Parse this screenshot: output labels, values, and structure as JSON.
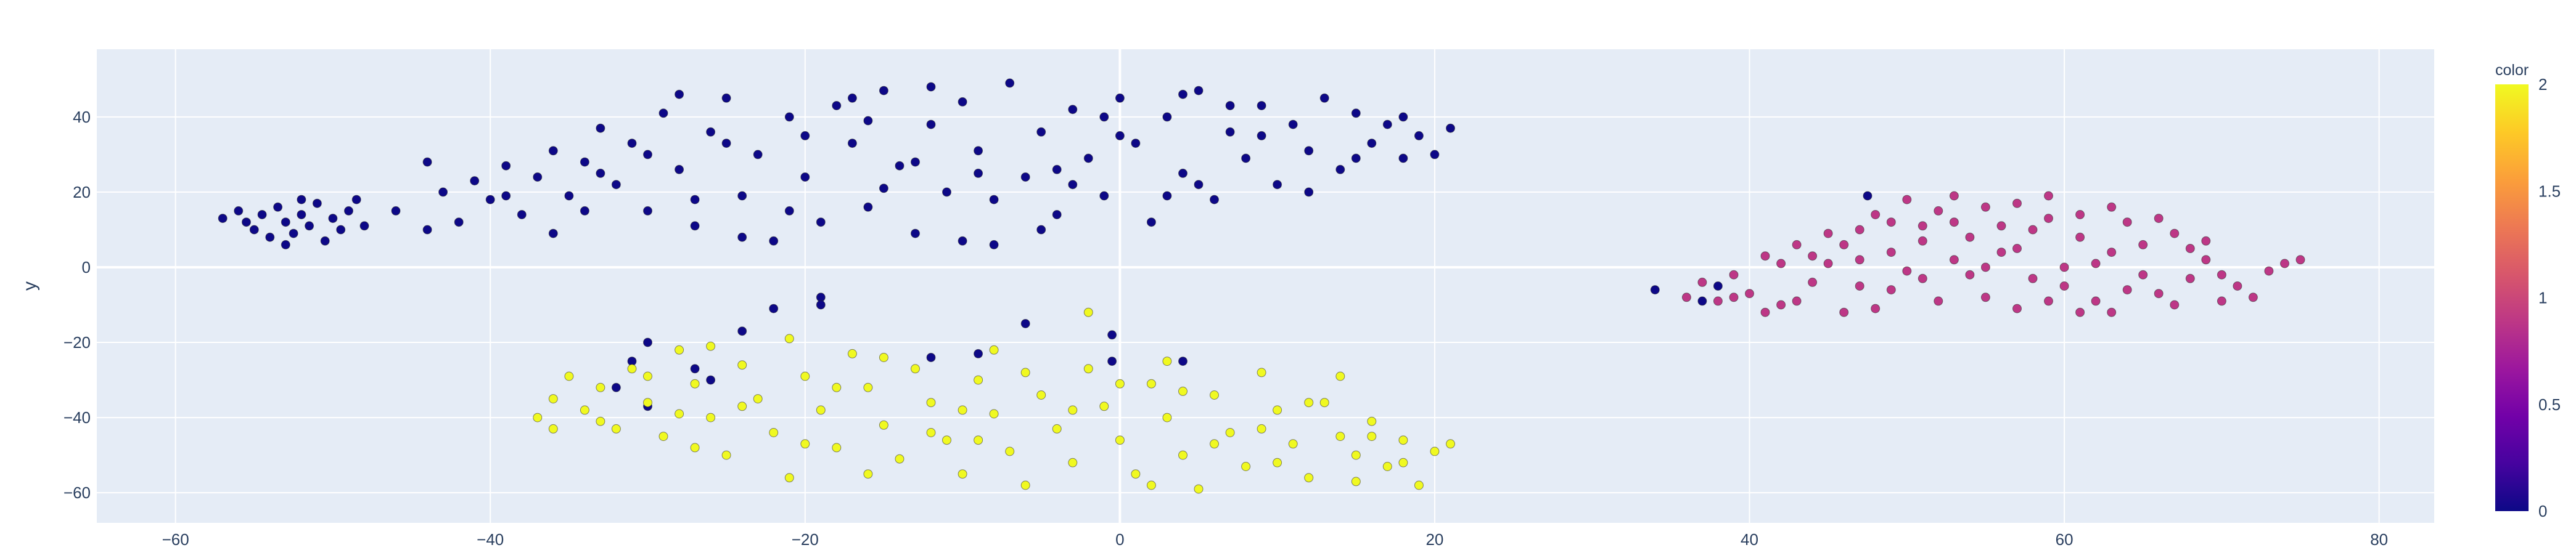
{
  "chart_data": {
    "type": "scatter",
    "xlabel": "",
    "ylabel": "y",
    "xlim": [
      -65,
      83.5
    ],
    "ylim": [
      -68,
      58
    ],
    "x_ticks": [
      -60,
      -40,
      -20,
      0,
      20,
      40,
      60,
      80
    ],
    "y_ticks": [
      -60,
      -40,
      -20,
      0,
      20,
      40
    ],
    "x_tick_labels": [
      "−60",
      "−40",
      "−20",
      "0",
      "20",
      "40",
      "60",
      "80"
    ],
    "y_tick_labels": [
      "−60",
      "−40",
      "−20",
      "0",
      "20",
      "40"
    ],
    "grid": true,
    "colorbar": {
      "title": "color",
      "range": [
        0,
        2
      ],
      "ticks": [
        0,
        0.5,
        1,
        1.5,
        2
      ],
      "tick_labels": [
        "0",
        "0.5",
        "1",
        "1.5",
        "2"
      ],
      "colorscale": [
        "#0d0887",
        "#46039f",
        "#7201a8",
        "#9c179e",
        "#bd3786",
        "#d8576b",
        "#ed7953",
        "#fb9f3a",
        "#fdca26",
        "#f0f921"
      ]
    },
    "series": [
      {
        "color_value": 0,
        "marker_color": "#0d0887",
        "points": [
          [
            -57,
            13
          ],
          [
            -56,
            15
          ],
          [
            -55.5,
            12
          ],
          [
            -55,
            10
          ],
          [
            -54.5,
            14
          ],
          [
            -54,
            8
          ],
          [
            -53.5,
            16
          ],
          [
            -53,
            12
          ],
          [
            -52.5,
            9
          ],
          [
            -52,
            14
          ],
          [
            -51.5,
            11
          ],
          [
            -51,
            17
          ],
          [
            -50.5,
            7
          ],
          [
            -50,
            13
          ],
          [
            -49.5,
            10
          ],
          [
            -49,
            15
          ],
          [
            -48,
            11
          ],
          [
            -48.5,
            18
          ],
          [
            -52,
            18
          ],
          [
            -53,
            6
          ],
          [
            -46,
            15
          ],
          [
            -44,
            10
          ],
          [
            -43,
            20
          ],
          [
            -42,
            12
          ],
          [
            -41,
            23
          ],
          [
            -40,
            18
          ],
          [
            -39,
            27
          ],
          [
            -38,
            14
          ],
          [
            -37,
            24
          ],
          [
            -36,
            31
          ],
          [
            -35,
            19
          ],
          [
            -34,
            28
          ],
          [
            -33,
            37
          ],
          [
            -32,
            22
          ],
          [
            -31,
            33
          ],
          [
            -30,
            15
          ],
          [
            -29,
            41
          ],
          [
            -28,
            26
          ],
          [
            -27,
            11
          ],
          [
            -26,
            36
          ],
          [
            -25,
            45
          ],
          [
            -24,
            19
          ],
          [
            -23,
            30
          ],
          [
            -22,
            7
          ],
          [
            -21,
            40
          ],
          [
            -20,
            24
          ],
          [
            -19,
            12
          ],
          [
            -18,
            43
          ],
          [
            -17,
            33
          ],
          [
            -16,
            16
          ],
          [
            -15,
            47
          ],
          [
            -14,
            27
          ],
          [
            -13,
            9
          ],
          [
            -12,
            38
          ],
          [
            -11,
            20
          ],
          [
            -10,
            44
          ],
          [
            -9,
            31
          ],
          [
            -8,
            6
          ],
          [
            -7,
            49
          ],
          [
            -6,
            24
          ],
          [
            -5,
            36
          ],
          [
            -4,
            14
          ],
          [
            -3,
            42
          ],
          [
            -2,
            29
          ],
          [
            -1,
            19
          ],
          [
            0,
            45
          ],
          [
            1,
            33
          ],
          [
            2,
            12
          ],
          [
            3,
            40
          ],
          [
            4,
            25
          ],
          [
            5,
            47
          ],
          [
            6,
            18
          ],
          [
            7,
            36
          ],
          [
            8,
            29
          ],
          [
            9,
            43
          ],
          [
            10,
            22
          ],
          [
            11,
            38
          ],
          [
            12,
            31
          ],
          [
            13,
            45
          ],
          [
            14,
            26
          ],
          [
            15,
            41
          ],
          [
            16,
            33
          ],
          [
            17,
            38
          ],
          [
            18,
            29
          ],
          [
            19,
            35
          ],
          [
            20,
            30
          ],
          [
            21,
            37
          ],
          [
            -44,
            28
          ],
          [
            -36,
            9
          ],
          [
            -28,
            46
          ],
          [
            -20,
            35
          ],
          [
            -12,
            48
          ],
          [
            -4,
            26
          ],
          [
            4,
            46
          ],
          [
            12,
            20
          ],
          [
            -30,
            30
          ],
          [
            -24,
            8
          ],
          [
            -16,
            39
          ],
          [
            -8,
            18
          ],
          [
            0,
            35
          ],
          [
            -33,
            25
          ],
          [
            -27,
            18
          ],
          [
            -21,
            15
          ],
          [
            -15,
            21
          ],
          [
            -9,
            25
          ],
          [
            -3,
            22
          ],
          [
            3,
            19
          ],
          [
            9,
            35
          ],
          [
            15,
            29
          ],
          [
            -39,
            19
          ],
          [
            -25,
            33
          ],
          [
            -17,
            45
          ],
          [
            -5,
            10
          ],
          [
            7,
            43
          ],
          [
            -13,
            28
          ],
          [
            -1,
            40
          ],
          [
            5,
            22
          ],
          [
            -34,
            15
          ],
          [
            -10,
            7
          ],
          [
            18,
            40
          ],
          [
            -22,
            -11
          ],
          [
            -19,
            -8
          ],
          [
            -19,
            -10
          ],
          [
            -6,
            -15
          ],
          [
            -0.5,
            -18
          ],
          [
            4,
            -25
          ],
          [
            -0.5,
            -25
          ],
          [
            -12,
            -24
          ],
          [
            -30,
            -20
          ],
          [
            -31,
            -25
          ],
          [
            -32,
            -32
          ],
          [
            -30,
            -37
          ],
          [
            -27,
            -27
          ],
          [
            -26,
            -30
          ],
          [
            -24,
            -17
          ],
          [
            -9,
            -23
          ],
          [
            34,
            -6
          ],
          [
            37,
            -9
          ],
          [
            38,
            -5
          ],
          [
            47.5,
            19
          ]
        ]
      },
      {
        "color_value": 1,
        "marker_color": "#bd3786",
        "points": [
          [
            36,
            -8
          ],
          [
            37,
            -4
          ],
          [
            38,
            -9
          ],
          [
            39,
            -2
          ],
          [
            40,
            -7
          ],
          [
            41,
            3
          ],
          [
            42,
            -10
          ],
          [
            43,
            6
          ],
          [
            44,
            -4
          ],
          [
            45,
            9
          ],
          [
            46,
            -12
          ],
          [
            47,
            2
          ],
          [
            48,
            14
          ],
          [
            49,
            -6
          ],
          [
            50,
            18
          ],
          [
            51,
            7
          ],
          [
            52,
            -9
          ],
          [
            53,
            12
          ],
          [
            54,
            -2
          ],
          [
            55,
            16
          ],
          [
            56,
            4
          ],
          [
            57,
            -11
          ],
          [
            58,
            10
          ],
          [
            59,
            19
          ],
          [
            60,
            -5
          ],
          [
            61,
            14
          ],
          [
            62,
            1
          ],
          [
            63,
            -12
          ],
          [
            64,
            12
          ],
          [
            65,
            6
          ],
          [
            66,
            -7
          ],
          [
            67,
            9
          ],
          [
            68,
            -3
          ],
          [
            69,
            2
          ],
          [
            70,
            -9
          ],
          [
            71,
            -5
          ],
          [
            72,
            -8
          ],
          [
            75,
            2
          ],
          [
            74,
            1
          ],
          [
            73,
            -1
          ],
          [
            41,
            -12
          ],
          [
            43,
            -9
          ],
          [
            45,
            1
          ],
          [
            47,
            10
          ],
          [
            49,
            4
          ],
          [
            51,
            -3
          ],
          [
            53,
            19
          ],
          [
            55,
            -8
          ],
          [
            57,
            5
          ],
          [
            59,
            -9
          ],
          [
            61,
            8
          ],
          [
            63,
            16
          ],
          [
            65,
            -2
          ],
          [
            67,
            -10
          ],
          [
            69,
            7
          ],
          [
            44,
            3
          ],
          [
            48,
            -11
          ],
          [
            52,
            15
          ],
          [
            56,
            11
          ],
          [
            60,
            0
          ],
          [
            64,
            -6
          ],
          [
            68,
            5
          ],
          [
            46,
            6
          ],
          [
            50,
            -1
          ],
          [
            54,
            8
          ],
          [
            58,
            -3
          ],
          [
            62,
            -9
          ],
          [
            66,
            13
          ],
          [
            70,
            -2
          ],
          [
            42,
            1
          ],
          [
            39,
            -8
          ],
          [
            47,
            -5
          ],
          [
            53,
            2
          ],
          [
            59,
            13
          ],
          [
            61,
            -12
          ],
          [
            57,
            17
          ],
          [
            49,
            12
          ],
          [
            55,
            0
          ],
          [
            63,
            4
          ],
          [
            51,
            11
          ]
        ]
      },
      {
        "color_value": 2,
        "marker_color": "#f0f921",
        "points": [
          [
            -37,
            -40
          ],
          [
            -36,
            -35
          ],
          [
            -35,
            -29
          ],
          [
            -34,
            -38
          ],
          [
            -33,
            -32
          ],
          [
            -32,
            -43
          ],
          [
            -31,
            -27
          ],
          [
            -30,
            -36
          ],
          [
            -29,
            -45
          ],
          [
            -28,
            -22
          ],
          [
            -27,
            -31
          ],
          [
            -26,
            -40
          ],
          [
            -25,
            -50
          ],
          [
            -24,
            -26
          ],
          [
            -23,
            -35
          ],
          [
            -22,
            -44
          ],
          [
            -21,
            -19
          ],
          [
            -20,
            -29
          ],
          [
            -19,
            -38
          ],
          [
            -18,
            -48
          ],
          [
            -17,
            -23
          ],
          [
            -16,
            -32
          ],
          [
            -15,
            -42
          ],
          [
            -14,
            -51
          ],
          [
            -13,
            -27
          ],
          [
            -12,
            -36
          ],
          [
            -11,
            -46
          ],
          [
            -10,
            -55
          ],
          [
            -9,
            -30
          ],
          [
            -8,
            -39
          ],
          [
            -7,
            -49
          ],
          [
            -6,
            -58
          ],
          [
            -5,
            -34
          ],
          [
            -4,
            -43
          ],
          [
            -3,
            -52
          ],
          [
            -2,
            -27
          ],
          [
            -1,
            -37
          ],
          [
            0,
            -46
          ],
          [
            1,
            -55
          ],
          [
            2,
            -31
          ],
          [
            3,
            -40
          ],
          [
            4,
            -50
          ],
          [
            5,
            -59
          ],
          [
            6,
            -34
          ],
          [
            7,
            -44
          ],
          [
            8,
            -53
          ],
          [
            9,
            -28
          ],
          [
            10,
            -38
          ],
          [
            11,
            -47
          ],
          [
            12,
            -56
          ],
          [
            13,
            -36
          ],
          [
            14,
            -45
          ],
          [
            15,
            -50
          ],
          [
            16,
            -41
          ],
          [
            17,
            -53
          ],
          [
            18,
            -46
          ],
          [
            19,
            -58
          ],
          [
            20,
            -49
          ],
          [
            21,
            -47
          ],
          [
            -2,
            -12
          ],
          [
            -33,
            -41
          ],
          [
            -27,
            -48
          ],
          [
            -21,
            -56
          ],
          [
            -15,
            -24
          ],
          [
            -9,
            -46
          ],
          [
            -3,
            -38
          ],
          [
            3,
            -25
          ],
          [
            9,
            -43
          ],
          [
            15,
            -57
          ],
          [
            -30,
            -29
          ],
          [
            -24,
            -37
          ],
          [
            -18,
            -32
          ],
          [
            -12,
            -44
          ],
          [
            -6,
            -28
          ],
          [
            0,
            -31
          ],
          [
            6,
            -47
          ],
          [
            12,
            -36
          ],
          [
            18,
            -52
          ],
          [
            -36,
            -43
          ],
          [
            -26,
            -21
          ],
          [
            -16,
            -55
          ],
          [
            -8,
            -22
          ],
          [
            4,
            -33
          ],
          [
            10,
            -52
          ],
          [
            16,
            -45
          ],
          [
            -20,
            -47
          ],
          [
            -10,
            -38
          ],
          [
            2,
            -58
          ],
          [
            14,
            -29
          ],
          [
            -28,
            -39
          ]
        ]
      }
    ]
  }
}
